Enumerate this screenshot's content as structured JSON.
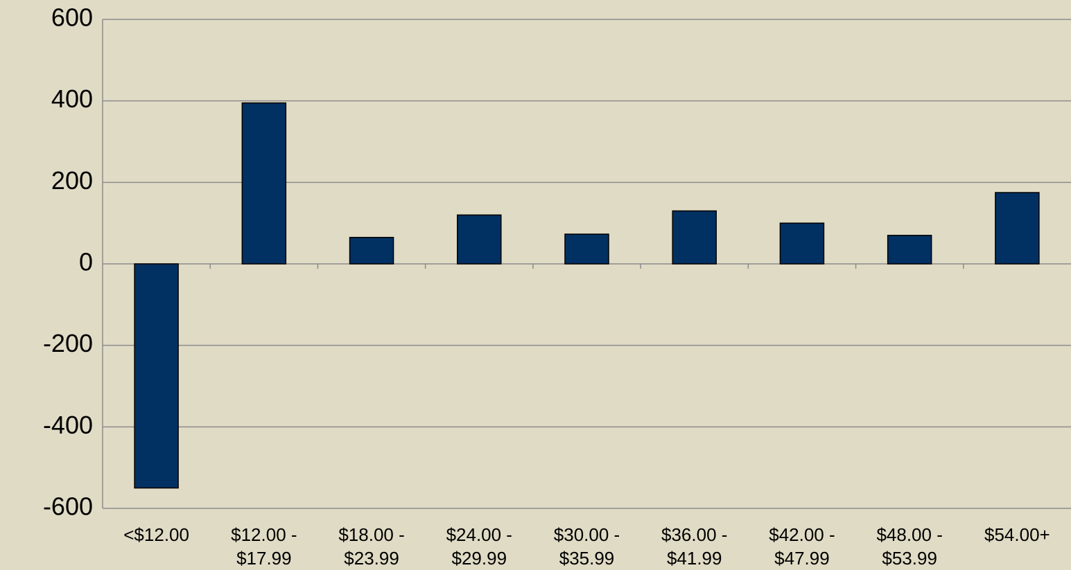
{
  "chart_data": {
    "type": "bar",
    "categories": [
      "<$12.00",
      "$12.00 - $17.99",
      "$18.00 - $23.99",
      "$24.00 - $29.99",
      "$30.00 - $35.99",
      "$36.00 - $41.99",
      "$42.00 - $47.99",
      "$48.00 - $53.99",
      "$54.00+"
    ],
    "values": [
      -550,
      395,
      65,
      120,
      73,
      130,
      100,
      70,
      175
    ],
    "color": "#003162",
    "ylim": [
      -600,
      600
    ],
    "yticks": [
      -600,
      -400,
      -200,
      0,
      200,
      400,
      600
    ],
    "grid": true
  }
}
